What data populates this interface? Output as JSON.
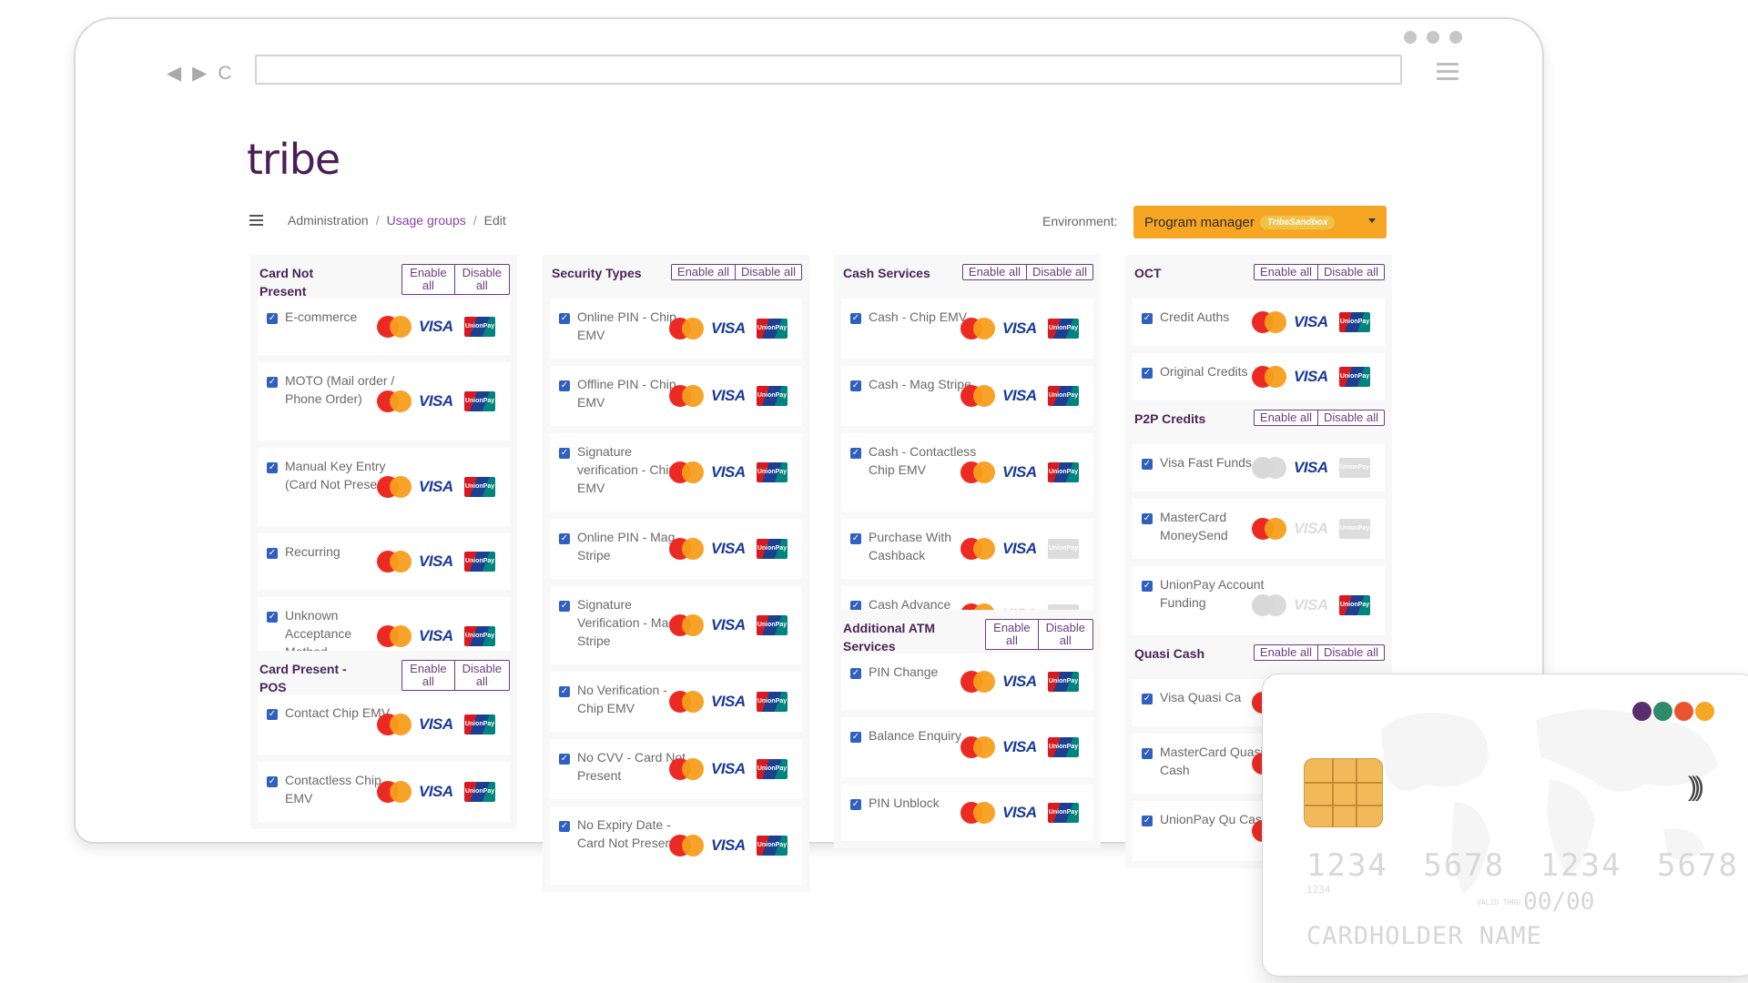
{
  "browser": {
    "nav": [
      "◀",
      "▶",
      "C"
    ]
  },
  "app": {
    "logo": "tribe",
    "breadcrumb": {
      "root": "Administration",
      "section": "Usage groups",
      "current": "Edit",
      "sep": "/"
    },
    "environment": {
      "label": "Environment:",
      "value": "Program manager",
      "badge": "TribeSandbox"
    }
  },
  "buttons": {
    "enable_all": "Enable all",
    "disable_all": "Disable all",
    "enable": "Enable",
    "disable": "Disable",
    "all": "all"
  },
  "brand_labels": {
    "visa": "VISA",
    "unionpay": "UnionPay"
  },
  "panels": {
    "card_not_present": {
      "title": "Card Not Present",
      "rows": [
        "E-commerce",
        "MOTO (Mail order / Phone Order)",
        "Manual Key Entry (Card Not Present)",
        "Recurring",
        "Unknown Acceptance Method"
      ]
    },
    "card_present_pos": {
      "title": "Card Present - POS",
      "rows": [
        "Contact Chip EMV",
        "Contactless Chip EMV"
      ]
    },
    "security_types": {
      "title": "Security Types",
      "rows": [
        "Online PIN - Chip EMV",
        "Offline PIN - Chip EMV",
        "Signature verification - Chip EMV",
        "Online PIN - Mag Stripe",
        "Signature Verification - Mag Stripe",
        "No Verification - Chip EMV",
        "No CVV - Card Not Present",
        "No Expiry Date - Card Not Present"
      ]
    },
    "cash_services": {
      "title": "Cash Services",
      "rows": [
        "Cash - Chip EMV",
        "Cash - Mag Stripe",
        "Cash - Contactless Chip EMV",
        "Purchase With Cashback",
        "Cash Advance"
      ]
    },
    "additional_atm": {
      "title": "Additional ATM Services",
      "rows": [
        "PIN Change",
        "Balance Enquiry",
        "PIN Unblock"
      ]
    },
    "oct": {
      "title": "OCT",
      "rows": [
        "Credit Auths",
        "Original Credits"
      ]
    },
    "p2p_credits": {
      "title": "P2P Credits",
      "rows": [
        "Visa Fast Funds",
        "MasterCard MoneySend",
        "UnionPay Account Funding"
      ]
    },
    "quasi_cash": {
      "title": "Quasi Cash",
      "rows": [
        "Visa Quasi Ca",
        "MasterCard Quasi Cash",
        "UnionPay Qu Cash"
      ]
    }
  },
  "card": {
    "number": "1234 5678 1234 5678",
    "small_number": "1234",
    "expiry_label": "VALID THRU",
    "expiry": "00/00",
    "holder": "CARDHOLDER NAME",
    "dot_colors": [
      "#5a2d6e",
      "#2f8a6a",
      "#e9542f",
      "#f5a623"
    ]
  },
  "colors": {
    "brand_purple": "#4b1f55",
    "accent_orange": "#f6a623",
    "checkbox_blue": "#2f5fbf"
  }
}
